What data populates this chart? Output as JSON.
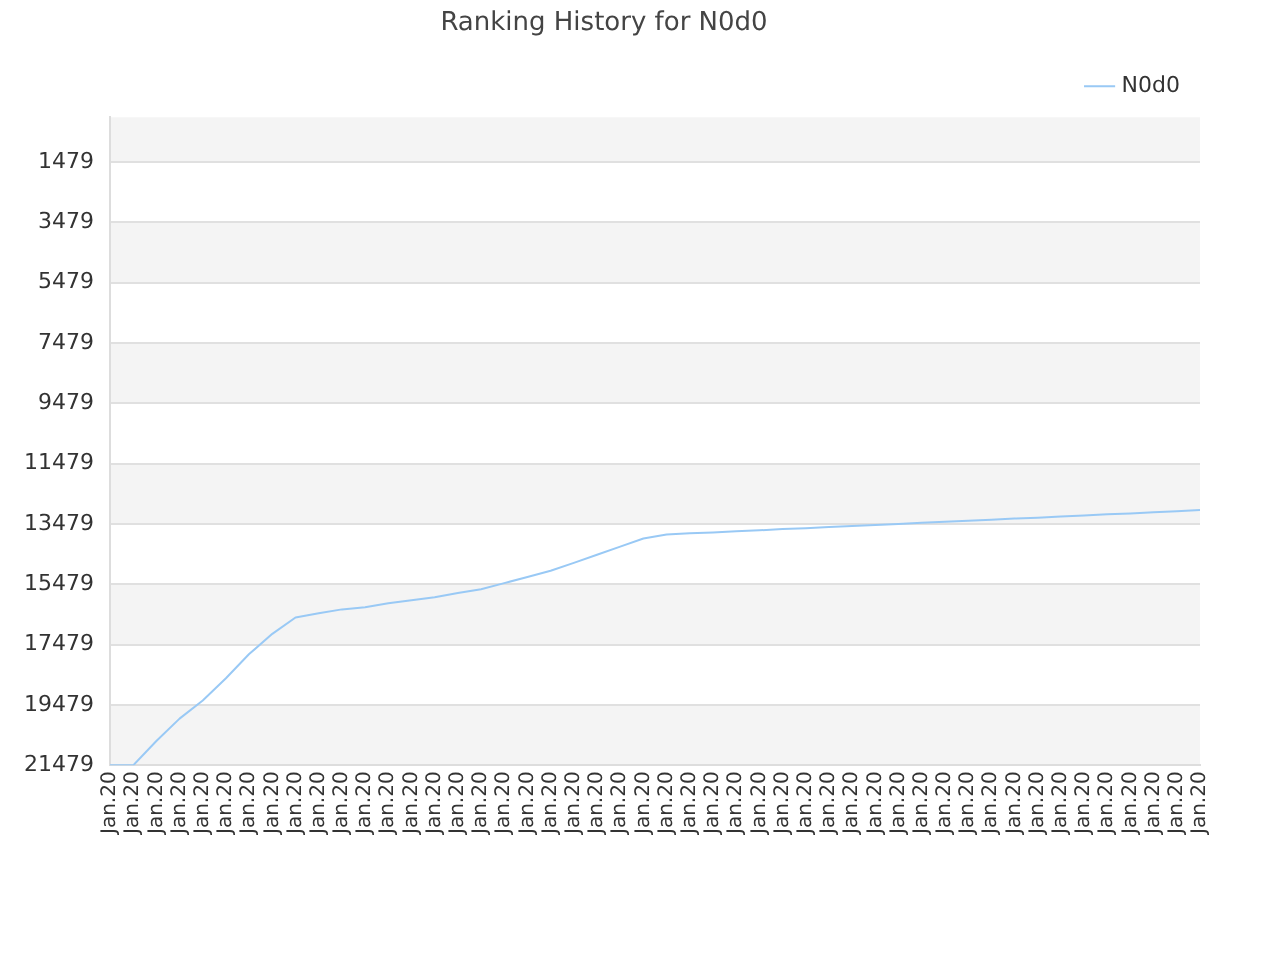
{
  "chart_data": {
    "type": "line",
    "title": "Ranking History for N0d0",
    "categories": [
      "Jan.20",
      "Jan.20",
      "Jan.20",
      "Jan.20",
      "Jan.20",
      "Jan.20",
      "Jan.20",
      "Jan.20",
      "Jan.20",
      "Jan.20",
      "Jan.20",
      "Jan.20",
      "Jan.20",
      "Jan.20",
      "Jan.20",
      "Jan.20",
      "Jan.20",
      "Jan.20",
      "Jan.20",
      "Jan.20",
      "Jan.20",
      "Jan.20",
      "Jan.20",
      "Jan.20",
      "Jan.20",
      "Jan.20",
      "Jan.20",
      "Jan.20",
      "Jan.20",
      "Jan.20",
      "Jan.20",
      "Jan.20",
      "Jan.20",
      "Jan.20",
      "Jan.20",
      "Jan.20",
      "Jan.20",
      "Jan.20",
      "Jan.20",
      "Jan.20",
      "Jan.20",
      "Jan.20",
      "Jan.20",
      "Jan.20",
      "Jan.20",
      "Jan.20",
      "Jan.20",
      "Jan.20"
    ],
    "series": [
      {
        "name": "N0d0",
        "color": "#99c9f5",
        "values": [
          21479,
          21479,
          20670,
          19930,
          19330,
          18590,
          17790,
          17120,
          16580,
          16440,
          16310,
          16240,
          16110,
          16010,
          15910,
          15770,
          15640,
          15440,
          15240,
          15030,
          14770,
          14500,
          14230,
          13960,
          13830,
          13790,
          13760,
          13720,
          13690,
          13650,
          13620,
          13580,
          13550,
          13510,
          13480,
          13440,
          13410,
          13370,
          13340,
          13300,
          13270,
          13230,
          13200,
          13160,
          13130,
          13090,
          13060,
          13020
        ]
      }
    ],
    "ylim": [
      21479,
      0
    ],
    "yticks": [
      1479,
      3479,
      5479,
      7479,
      9479,
      11479,
      13479,
      15479,
      17479,
      19479,
      21479
    ],
    "grid": "y",
    "legend": "top right",
    "marker": "none",
    "line_style": "solid"
  }
}
